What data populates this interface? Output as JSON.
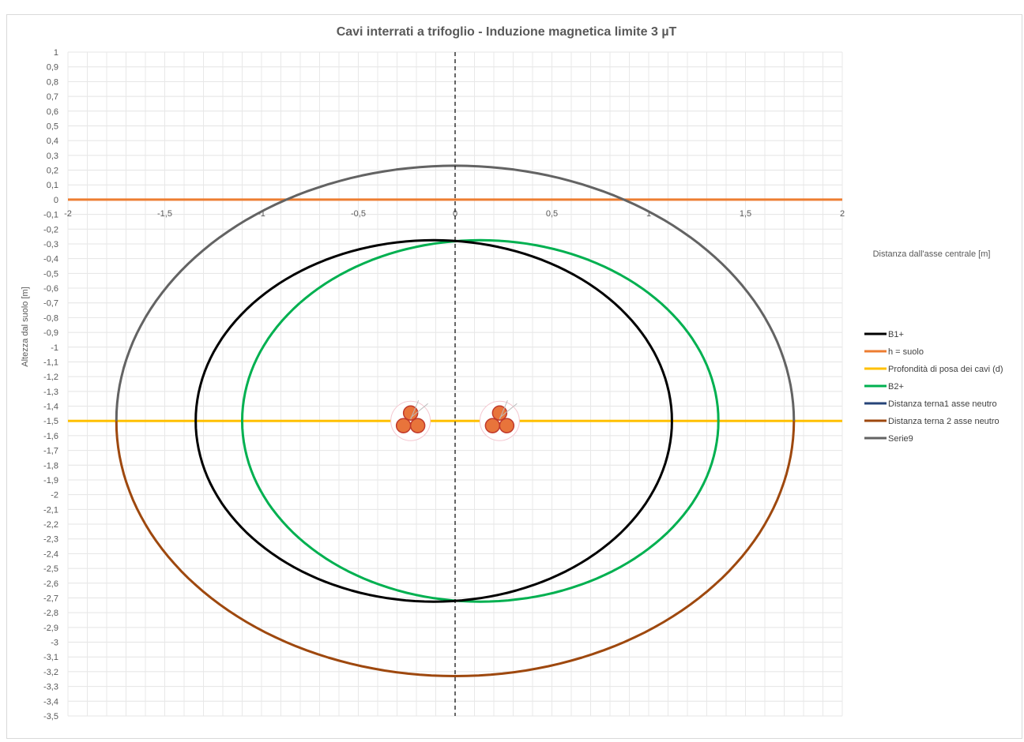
{
  "chart_data": {
    "type": "line",
    "title": "Cavi interrati a trifoglio - Induzione magnetica limite 3 µT",
    "xlabel": "Distanza dall'asse centrale [m]",
    "ylabel": "Altezza dal suolo [m]",
    "xlim": [
      -2,
      2
    ],
    "ylim": [
      -3.5,
      1
    ],
    "x_ticks": [
      -2,
      -1.5,
      -1,
      -0.5,
      0,
      0.5,
      1,
      1.5,
      2
    ],
    "x_tick_labels": [
      "-2",
      "-1,5",
      "-1",
      "-0,5",
      "0",
      "0,5",
      "1",
      "1,5",
      "2"
    ],
    "y_tick_labels": [
      "1",
      "0,9",
      "0,8",
      "0,7",
      "0,6",
      "0,5",
      "0,4",
      "0,3",
      "0,2",
      "0,1",
      "0",
      "-0,1",
      "-0,2",
      "-0,3",
      "-0,4",
      "-0,5",
      "-0,6",
      "-0,7",
      "-0,8",
      "-0,9",
      "-1",
      "-1,1",
      "-1,2",
      "-1,3",
      "-1,4",
      "-1,5",
      "-1,6",
      "-1,7",
      "-1,8",
      "-1,9",
      "-2",
      "-2,1",
      "-2,2",
      "-2,3",
      "-2,4",
      "-2,5",
      "-2,6",
      "-2,7",
      "-2,8",
      "-2,9",
      "-3",
      "-3,1",
      "-3,2",
      "-3,3",
      "-3,4",
      "-3,5"
    ],
    "grid": true,
    "legend_position": "right",
    "series": [
      {
        "name": "B1+",
        "color": "#000000",
        "shape": "ellipse",
        "center_x": -0.11,
        "center_y": -1.5,
        "radius_x": 1.23,
        "radius_y": 1.225
      },
      {
        "name": "h = suolo",
        "color": "#ed7d31",
        "shape": "hline",
        "x": [
          -2,
          2
        ],
        "y": [
          0,
          0
        ]
      },
      {
        "name": "Profondità di posa dei cavi (d)",
        "color": "#ffc000",
        "shape": "hline",
        "x": [
          -2,
          2
        ],
        "y": [
          -1.5,
          -1.5
        ]
      },
      {
        "name": "B2+",
        "color": "#00b050",
        "shape": "ellipse",
        "center_x": 0.13,
        "center_y": -1.5,
        "radius_x": 1.23,
        "radius_y": 1.225
      },
      {
        "name": "Distanza terna1 asse neutro",
        "color": "#264478",
        "shape": "vline",
        "x": [
          0,
          0
        ],
        "y": [
          1,
          -3.5
        ]
      },
      {
        "name": "Distanza terna 2 asse neutro",
        "color": "#9e480e",
        "shape": "lower-half-ellipse",
        "center_x": 0.0,
        "center_y": -1.5,
        "radius_x": 1.75,
        "radius_y": 1.73
      },
      {
        "name": "Serie9",
        "color": "#636363",
        "shape": "upper-half-ellipse",
        "center_x": 0.0,
        "center_y": -1.5,
        "radius_x": 1.75,
        "radius_y": 1.73
      }
    ],
    "cable_groups": [
      {
        "name": "terna-1",
        "x": -0.23,
        "y": -1.5
      },
      {
        "name": "terna-2",
        "x": 0.23,
        "y": -1.5
      }
    ]
  }
}
